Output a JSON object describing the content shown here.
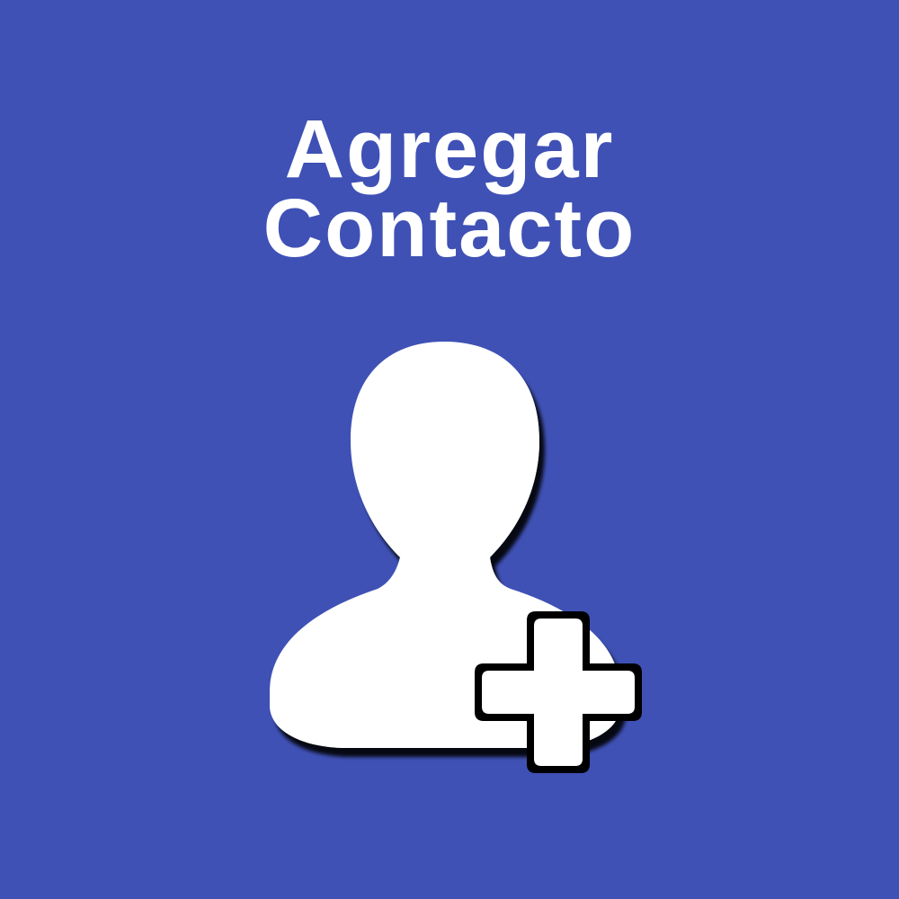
{
  "title": {
    "line1": "Agregar",
    "line2": "Contacto"
  },
  "icon": {
    "name": "add-contact-icon",
    "parts": [
      "person-silhouette-icon",
      "plus-icon"
    ]
  },
  "colors": {
    "background": "#3F51B5",
    "foreground": "#FFFFFF",
    "outline": "#000000"
  }
}
